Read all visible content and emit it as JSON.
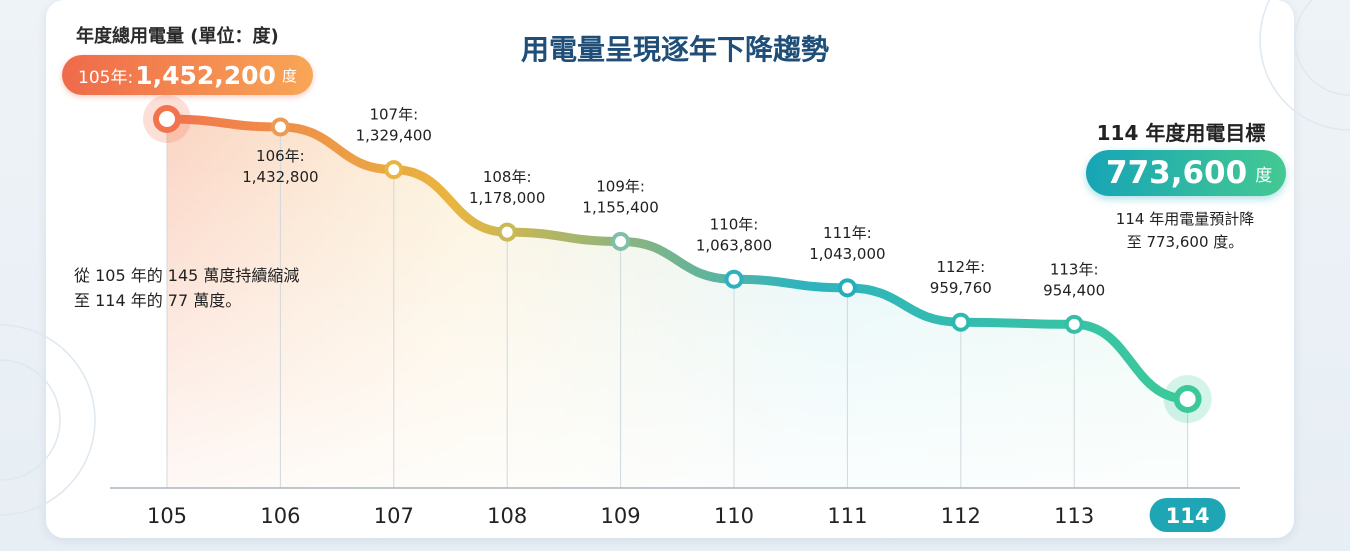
{
  "title": "用電量呈現逐年下降趨勢",
  "unit_label": "年度總用電量 (單位：度)",
  "start_badge": {
    "prefix": "105年:",
    "value": "1,452,200",
    "unit": "度"
  },
  "target": {
    "title": "114 年度用電目標",
    "value": "773,600",
    "unit": "度",
    "note": "114 年用電量預計降\n至 773,600 度。"
  },
  "left_note": "從 105 年的 145 萬度持續縮減\n至 114 年的 77 萬度。",
  "colors": {
    "start": "#f2744e",
    "mid": "#e9b640",
    "end": "#33c2a5",
    "teal": "#1fa6b5",
    "title": "#1f4e78"
  },
  "chart_data": {
    "type": "line",
    "title": "用電量呈現逐年下降趨勢",
    "ylabel": "年度總用電量 (單位：度)",
    "xlabel": "",
    "categories": [
      "105",
      "106",
      "107",
      "108",
      "109",
      "110",
      "111",
      "112",
      "113",
      "114"
    ],
    "values": [
      1452200,
      1432800,
      1329400,
      1178000,
      1155400,
      1063800,
      1043000,
      959760,
      954400,
      773600
    ],
    "point_labels": [
      null,
      [
        "106年:",
        "1,432,800"
      ],
      [
        "107年:",
        "1,329,400"
      ],
      [
        "108年:",
        "1,178,000"
      ],
      [
        "109年:",
        "1,155,400"
      ],
      [
        "110年:",
        "1,063,800"
      ],
      [
        "111年:",
        "1,043,000"
      ],
      [
        "112年:",
        "959,760"
      ],
      [
        "113年:",
        "954,400"
      ],
      null
    ],
    "highlight_category": "114",
    "ylim": [
      773600,
      1452200
    ],
    "grid": false,
    "legend": "none"
  }
}
